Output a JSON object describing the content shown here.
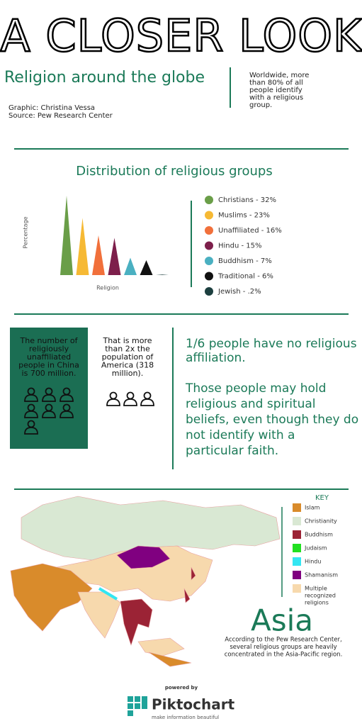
{
  "header": {
    "title": "A CLOSER LOOK",
    "subtitle": "Religion around the globe",
    "credit": [
      "Graphic: Christina Vessa",
      "Source: Pew Research Center"
    ],
    "note": [
      "Worldwide, more",
      "than 80% of all",
      "people identify",
      "with a religious",
      "group."
    ]
  },
  "chart_data": {
    "type": "triangle",
    "title": "Distribution of religious groups",
    "y_label": "Percentage",
    "x_label": "Religion",
    "categories": [
      "Christians - 32%",
      "Muslims - 23%",
      "Unaffiliated - 16%",
      "Hindu - 15%",
      "Buddhism - 7%",
      "Traditional - 6%",
      "Jewish - .2%"
    ],
    "values": [
      32,
      23,
      16,
      15,
      7,
      6,
      0.2
    ],
    "colors": [
      "#6a9e48",
      "#f6b934",
      "#f1703b",
      "#7d1f4b",
      "#4ab0c1",
      "#111111",
      "#1c3f3f"
    ]
  },
  "china": {
    "box": [
      "The number of",
      "religiously",
      "unaffiliated",
      "people in China",
      "is 700 million."
    ],
    "compare": [
      "That is more",
      "than 2x the",
      "population of",
      "America (318",
      "million)."
    ]
  },
  "unaffiliated": {
    "headline": [
      "1/6 people have no religious",
      "affiliation."
    ],
    "body": [
      "Those people may hold",
      "religious and spiritual",
      "beliefs, even though they do",
      "not identify with a",
      "particular faith."
    ]
  },
  "map": {
    "key_title": "KEY",
    "key": [
      {
        "label": [
          "Islam"
        ],
        "color": "#d98b2b"
      },
      {
        "label": [
          "Christianity"
        ],
        "color": "#d9e8d3"
      },
      {
        "label": [
          "Buddhism"
        ],
        "color": "#9b2335"
      },
      {
        "label": [
          "Judaism"
        ],
        "color": "#21e021"
      },
      {
        "label": [
          "Hindu"
        ],
        "color": "#33e6f2"
      },
      {
        "label": [
          "Shamanism"
        ],
        "color": "#800080"
      },
      {
        "label": [
          "Multiple",
          "recognized",
          "religions"
        ],
        "color": "#f7d9ad"
      }
    ],
    "region": "Asia",
    "caption": [
      "According to the Pew Research Center,",
      "several religious groups are heavily",
      "concentrated in the Asia-Pacific region."
    ]
  },
  "footer": {
    "powered": "powered by",
    "brand": "Piktochart",
    "tagline": "make information beautiful"
  }
}
